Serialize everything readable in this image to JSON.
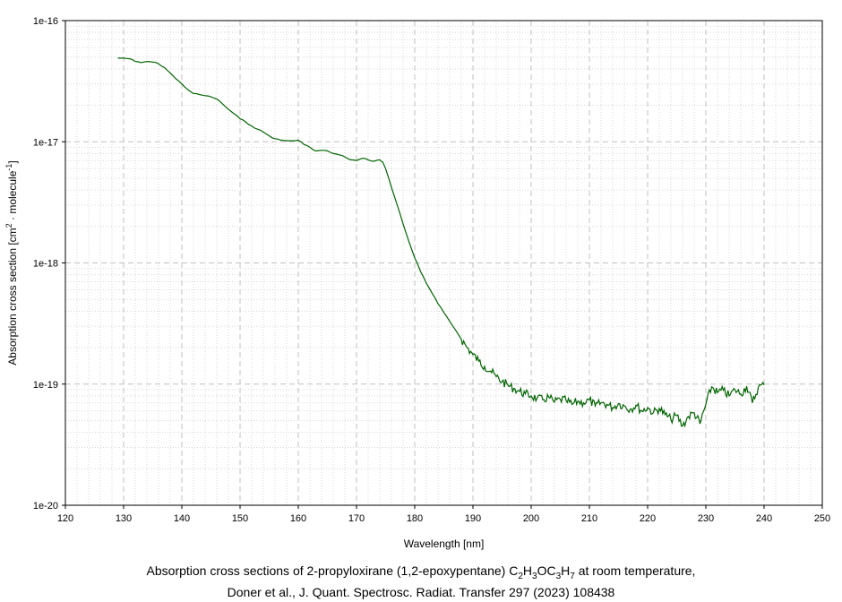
{
  "chart_data": {
    "type": "line",
    "title": "",
    "xlabel": "Wavelength [nm]",
    "ylabel_parts": {
      "main": "Absorption cross section [cm",
      "sup1": "2",
      "middle": " · molecule",
      "sup2": "-1",
      "end": "]"
    },
    "xlim": [
      120,
      250
    ],
    "ylim": [
      1e-20,
      1e-16
    ],
    "yscale": "log",
    "grid": true,
    "x_ticks": [
      "120",
      "130",
      "140",
      "150",
      "160",
      "170",
      "180",
      "190",
      "200",
      "210",
      "220",
      "230",
      "240",
      "250"
    ],
    "y_ticks": [
      "1e-16",
      "1e-17",
      "1e-18",
      "1e-19",
      "1e-20"
    ],
    "series": [
      {
        "color": "#006400",
        "points": [
          [
            129,
            4.9e-17
          ],
          [
            130,
            4.9e-17
          ],
          [
            131,
            4.85e-17
          ],
          [
            132,
            4.6e-17
          ],
          [
            133,
            4.5e-17
          ],
          [
            134,
            4.6e-17
          ],
          [
            135,
            4.55e-17
          ],
          [
            136,
            4.4e-17
          ],
          [
            137,
            4.1e-17
          ],
          [
            138,
            3.7e-17
          ],
          [
            139,
            3.3e-17
          ],
          [
            140,
            3e-17
          ],
          [
            141,
            2.7e-17
          ],
          [
            142,
            2.5e-17
          ],
          [
            143,
            2.45e-17
          ],
          [
            144,
            2.4e-17
          ],
          [
            145,
            2.35e-17
          ],
          [
            146,
            2.25e-17
          ],
          [
            147,
            2.05e-17
          ],
          [
            148,
            1.85e-17
          ],
          [
            149,
            1.7e-17
          ],
          [
            150,
            1.55e-17
          ],
          [
            151,
            1.45e-17
          ],
          [
            152,
            1.35e-17
          ],
          [
            153,
            1.27e-17
          ],
          [
            154,
            1.2e-17
          ],
          [
            155,
            1.12e-17
          ],
          [
            156,
            1.06e-17
          ],
          [
            157,
            1.03e-17
          ],
          [
            158,
            1.02e-17
          ],
          [
            159,
            1.02e-17
          ],
          [
            160,
            1.03e-17
          ],
          [
            161,
            9.5e-18
          ],
          [
            162,
            9e-18
          ],
          [
            163,
            8.4e-18
          ],
          [
            164,
            8.5e-18
          ],
          [
            165,
            8.4e-18
          ],
          [
            166,
            8e-18
          ],
          [
            167,
            7.8e-18
          ],
          [
            168,
            7.5e-18
          ],
          [
            169,
            7.1e-18
          ],
          [
            170,
            7e-18
          ],
          [
            171,
            7.3e-18
          ],
          [
            172,
            7.1e-18
          ],
          [
            173,
            6.9e-18
          ],
          [
            174,
            7.1e-18
          ],
          [
            174.5,
            6.8e-18
          ],
          [
            175,
            6e-18
          ],
          [
            176,
            4.2e-18
          ],
          [
            177,
            3e-18
          ],
          [
            178,
            2.1e-18
          ],
          [
            179,
            1.5e-18
          ],
          [
            180,
            1.1e-18
          ],
          [
            181,
            8.5e-19
          ],
          [
            182,
            6.8e-19
          ],
          [
            183,
            5.6e-19
          ],
          [
            184,
            4.6e-19
          ],
          [
            185,
            3.9e-19
          ],
          [
            186,
            3.3e-19
          ],
          [
            187,
            2.8e-19
          ],
          [
            188,
            2.35e-19
          ],
          [
            189,
            2e-19
          ],
          [
            190,
            1.75e-19
          ],
          [
            191,
            1.55e-19
          ],
          [
            192,
            1.4e-19
          ],
          [
            193,
            1.28e-19
          ],
          [
            194,
            1.15e-19
          ],
          [
            195,
            1.05e-19
          ],
          [
            196,
            9.8e-20
          ],
          [
            197,
            9.2e-20
          ],
          [
            198,
            8.7e-20
          ],
          [
            199,
            8.3e-20
          ],
          [
            200,
            8e-20
          ],
          [
            201,
            7.6e-20
          ],
          [
            202,
            7.4e-20
          ],
          [
            203,
            7.8e-20
          ],
          [
            204,
            7.1e-20
          ],
          [
            205,
            7.5e-20
          ],
          [
            206,
            7.3e-20
          ],
          [
            207,
            6.8e-20
          ],
          [
            208,
            7.2e-20
          ],
          [
            209,
            7e-20
          ],
          [
            210,
            7.4e-20
          ],
          [
            211,
            6.6e-20
          ],
          [
            212,
            7e-20
          ],
          [
            213,
            6.8e-20
          ],
          [
            214,
            6.4e-20
          ],
          [
            215,
            6.9e-20
          ],
          [
            216,
            6.6e-20
          ],
          [
            217,
            6.2e-20
          ],
          [
            218,
            6.7e-20
          ],
          [
            219,
            6e-20
          ],
          [
            220,
            6.4e-20
          ],
          [
            221,
            5.8e-20
          ],
          [
            222,
            6.3e-20
          ],
          [
            223,
            5.6e-20
          ],
          [
            224,
            5.1e-20
          ],
          [
            225,
            5.5e-20
          ],
          [
            226,
            4.5e-20
          ],
          [
            227,
            5.4e-20
          ],
          [
            228,
            5.8e-20
          ],
          [
            229,
            4.7e-20
          ],
          [
            230,
            6.8e-20
          ],
          [
            231,
            9.5e-20
          ],
          [
            232,
            8.5e-20
          ],
          [
            233,
            8.9e-20
          ],
          [
            234,
            8e-20
          ],
          [
            235,
            9e-20
          ],
          [
            236,
            8.3e-20
          ],
          [
            237,
            9.6e-20
          ],
          [
            238,
            7e-20
          ],
          [
            239,
            9.4e-20
          ],
          [
            240,
            9.8e-20
          ]
        ]
      }
    ]
  },
  "caption": {
    "line1": {
      "before": "Absorption cross sections of 2-propyloxirane (1,2-epoxypentane) ",
      "formula": [
        {
          "t": "C",
          "s": "2"
        },
        {
          "t": "H",
          "s": "3"
        },
        {
          "t": "OC",
          "s": "3"
        },
        {
          "t": "H",
          "s": "7"
        }
      ],
      "after": " at room temperature,"
    },
    "line2": "Doner et al., J. Quant. Spectrosc. Radiat. Transfer 297 (2023) 108438"
  }
}
